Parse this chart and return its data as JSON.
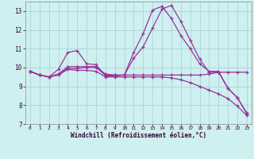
{
  "xlabel": "Windchill (Refroidissement éolien,°C)",
  "xlim": [
    -0.5,
    23.5
  ],
  "ylim": [
    7,
    13.5
  ],
  "yticks": [
    7,
    8,
    9,
    10,
    11,
    12,
    13
  ],
  "xticks": [
    0,
    1,
    2,
    3,
    4,
    5,
    6,
    7,
    8,
    9,
    10,
    11,
    12,
    13,
    14,
    15,
    16,
    17,
    18,
    19,
    20,
    21,
    22,
    23
  ],
  "background_color": "#cff0f0",
  "grid_color": "#aad4d4",
  "line_color": "#993399",
  "line1_y": [
    9.8,
    9.6,
    9.5,
    9.9,
    10.8,
    10.9,
    10.2,
    10.15,
    9.55,
    9.55,
    9.6,
    10.8,
    11.8,
    13.05,
    13.25,
    12.6,
    11.7,
    11.0,
    10.2,
    9.8,
    9.8,
    8.9,
    8.4,
    7.6
  ],
  "line2_y": [
    9.8,
    9.6,
    9.5,
    9.65,
    9.95,
    9.95,
    10.0,
    10.0,
    9.6,
    9.6,
    9.6,
    9.6,
    9.6,
    9.6,
    9.6,
    9.6,
    9.6,
    9.6,
    9.6,
    9.65,
    9.75,
    9.75,
    9.75,
    9.75
  ],
  "line3_y": [
    9.8,
    9.6,
    9.5,
    9.6,
    9.9,
    9.85,
    9.85,
    9.8,
    9.5,
    9.5,
    9.5,
    9.5,
    9.5,
    9.5,
    9.5,
    9.45,
    9.35,
    9.2,
    9.0,
    8.8,
    8.6,
    8.35,
    7.95,
    7.45
  ],
  "line4_y": [
    9.8,
    9.6,
    9.5,
    9.65,
    10.05,
    10.05,
    10.05,
    10.05,
    9.65,
    9.6,
    9.6,
    10.5,
    11.1,
    12.1,
    13.1,
    13.3,
    12.45,
    11.45,
    10.45,
    9.75,
    9.75,
    8.9,
    8.4,
    7.55
  ]
}
